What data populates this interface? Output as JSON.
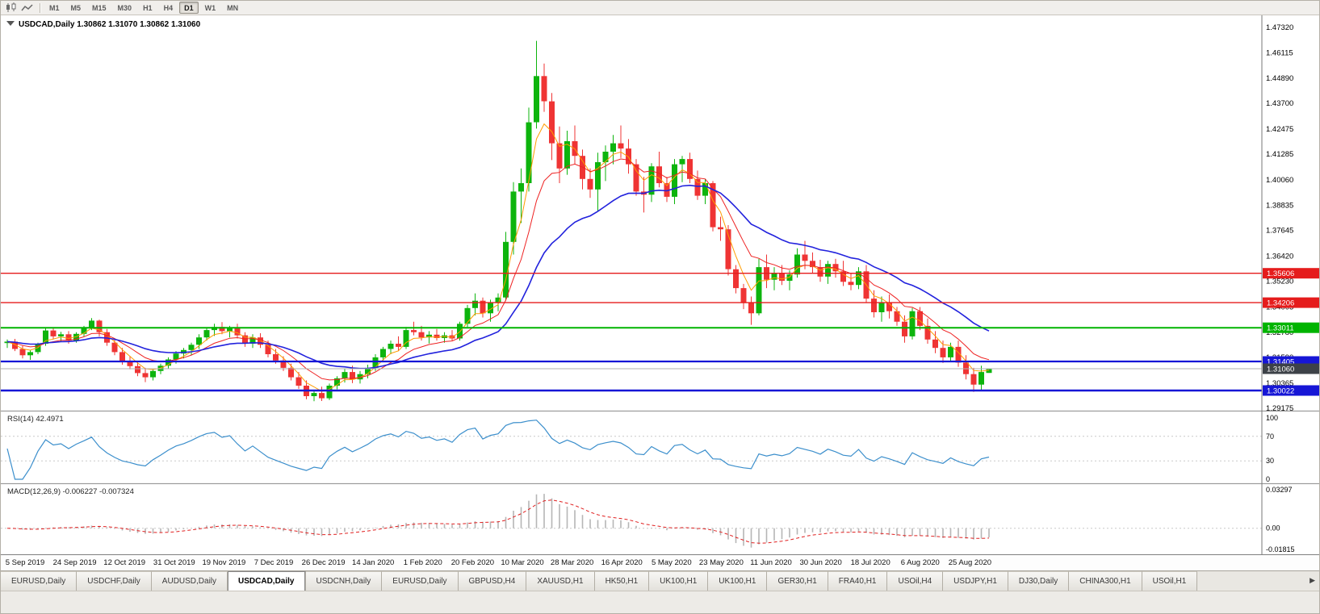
{
  "icons": {
    "tab_scroll_right": "▶"
  },
  "toolbar": {
    "timeframes": [
      "M1",
      "M5",
      "M15",
      "M30",
      "H1",
      "H4",
      "D1",
      "W1",
      "MN"
    ],
    "active_timeframe": "D1"
  },
  "chart_data": {
    "type": "candlestick",
    "header": {
      "symbol": "USDCAD,Daily",
      "open": "1.30862",
      "high": "1.31070",
      "low": "1.30862",
      "close": "1.31060"
    },
    "y_axis_labels": [
      "1.47320",
      "1.46115",
      "1.44890",
      "1.43700",
      "1.42475",
      "1.41285",
      "1.40060",
      "1.38835",
      "1.37645",
      "1.36420",
      "1.35230",
      "1.34005",
      "1.32780",
      "1.31590",
      "1.30365",
      "1.29175"
    ],
    "x_axis_labels": [
      "5 Sep 2019",
      "24 Sep 2019",
      "12 Oct 2019",
      "31 Oct 2019",
      "19 Nov 2019",
      "7 Dec 2019",
      "26 Dec 2019",
      "14 Jan 2020",
      "1 Feb 2020",
      "20 Feb 2020",
      "10 Mar 2020",
      "28 Mar 2020",
      "16 Apr 2020",
      "5 May 2020",
      "23 May 2020",
      "11 Jun 2020",
      "30 Jun 2020",
      "18 Jul 2020",
      "6 Aug 2020",
      "25 Aug 2020"
    ],
    "candle_colors": {
      "up": "#0db40d",
      "down": "#ef3434"
    },
    "ma_lines": [
      {
        "name": "fast",
        "color": "#ff9c00"
      },
      {
        "name": "medium",
        "color": "#ee2222"
      },
      {
        "name": "slow",
        "color": "#2222dd"
      }
    ],
    "hlines": [
      {
        "value": 1.35606,
        "label": "1.35606",
        "color": "#e51c1c",
        "width": 1.4
      },
      {
        "value": 1.34206,
        "label": "1.34206",
        "color": "#e51c1c",
        "width": 1.4
      },
      {
        "value": 1.33011,
        "label": "1.33011",
        "color": "#00b400",
        "width": 2
      },
      {
        "value": 1.31405,
        "label": "1.31405",
        "color": "#1616d6",
        "width": 2.2
      },
      {
        "value": 1.30022,
        "label": "1.30022",
        "color": "#1616d6",
        "width": 2.6
      }
    ],
    "current_price": {
      "value": 1.3106,
      "label": "1.31060",
      "line_color": "#b0b0b0",
      "box_color": "#3d4248"
    },
    "ohlc": [
      [
        1.3228,
        1.3245,
        1.3205,
        1.3235
      ],
      [
        1.3235,
        1.3248,
        1.319,
        1.32
      ],
      [
        1.32,
        1.3215,
        1.3155,
        1.317
      ],
      [
        1.317,
        1.3195,
        1.3148,
        1.3185
      ],
      [
        1.3185,
        1.323,
        1.3175,
        1.3225
      ],
      [
        1.3225,
        1.3298,
        1.3215,
        1.3288
      ],
      [
        1.3288,
        1.33,
        1.3245,
        1.326
      ],
      [
        1.326,
        1.3282,
        1.3235,
        1.327
      ],
      [
        1.327,
        1.3285,
        1.3225,
        1.324
      ],
      [
        1.324,
        1.328,
        1.323,
        1.3272
      ],
      [
        1.3272,
        1.331,
        1.326,
        1.33
      ],
      [
        1.33,
        1.3347,
        1.329,
        1.3335
      ],
      [
        1.3335,
        1.334,
        1.326,
        1.328
      ],
      [
        1.328,
        1.3295,
        1.3215,
        1.323
      ],
      [
        1.323,
        1.325,
        1.317,
        1.3185
      ],
      [
        1.3185,
        1.3205,
        1.3125,
        1.314
      ],
      [
        1.314,
        1.3165,
        1.3103,
        1.3118
      ],
      [
        1.3118,
        1.314,
        1.307,
        1.3085
      ],
      [
        1.3085,
        1.311,
        1.3042,
        1.3065
      ],
      [
        1.3065,
        1.3105,
        1.305,
        1.3095
      ],
      [
        1.3095,
        1.313,
        1.308,
        1.312
      ],
      [
        1.312,
        1.316,
        1.3105,
        1.315
      ],
      [
        1.315,
        1.319,
        1.313,
        1.3178
      ],
      [
        1.3178,
        1.3205,
        1.3155,
        1.3195
      ],
      [
        1.3195,
        1.323,
        1.317,
        1.322
      ],
      [
        1.322,
        1.327,
        1.32,
        1.3255
      ],
      [
        1.3255,
        1.33,
        1.324,
        1.329
      ],
      [
        1.329,
        1.332,
        1.3262,
        1.3305
      ],
      [
        1.3305,
        1.3328,
        1.327,
        1.3285
      ],
      [
        1.3285,
        1.331,
        1.3255,
        1.33
      ],
      [
        1.33,
        1.332,
        1.325,
        1.3265
      ],
      [
        1.3265,
        1.328,
        1.321,
        1.3225
      ],
      [
        1.3225,
        1.327,
        1.3205,
        1.3255
      ],
      [
        1.3255,
        1.3275,
        1.3205,
        1.322
      ],
      [
        1.322,
        1.324,
        1.316,
        1.3175
      ],
      [
        1.3175,
        1.32,
        1.313,
        1.3145
      ],
      [
        1.3145,
        1.3165,
        1.3095,
        1.311
      ],
      [
        1.311,
        1.313,
        1.305,
        1.3065
      ],
      [
        1.3065,
        1.309,
        1.301,
        1.3025
      ],
      [
        1.3025,
        1.305,
        1.296,
        1.2975
      ],
      [
        1.2975,
        1.3005,
        1.2951,
        1.299
      ],
      [
        1.299,
        1.302,
        1.2952,
        1.2965
      ],
      [
        1.2965,
        1.3035,
        1.2957,
        1.3025
      ],
      [
        1.3025,
        1.307,
        1.3008,
        1.306
      ],
      [
        1.306,
        1.3105,
        1.304,
        1.309
      ],
      [
        1.309,
        1.312,
        1.3037,
        1.3055
      ],
      [
        1.3055,
        1.3095,
        1.3035,
        1.308
      ],
      [
        1.308,
        1.3125,
        1.306,
        1.311
      ],
      [
        1.311,
        1.3175,
        1.3095,
        1.316
      ],
      [
        1.316,
        1.321,
        1.314,
        1.32
      ],
      [
        1.32,
        1.324,
        1.3175,
        1.3225
      ],
      [
        1.3225,
        1.326,
        1.319,
        1.321
      ],
      [
        1.321,
        1.3305,
        1.32,
        1.329
      ],
      [
        1.329,
        1.333,
        1.3265,
        1.328
      ],
      [
        1.328,
        1.331,
        1.324,
        1.3255
      ],
      [
        1.3255,
        1.3285,
        1.3226,
        1.3268
      ],
      [
        1.3268,
        1.3295,
        1.324,
        1.3252
      ],
      [
        1.3252,
        1.328,
        1.323,
        1.3265
      ],
      [
        1.3265,
        1.329,
        1.324,
        1.325
      ],
      [
        1.325,
        1.333,
        1.324,
        1.332
      ],
      [
        1.332,
        1.341,
        1.3305,
        1.3395
      ],
      [
        1.3395,
        1.3465,
        1.336,
        1.343
      ],
      [
        1.343,
        1.3445,
        1.335,
        1.337
      ],
      [
        1.337,
        1.3435,
        1.333,
        1.342
      ],
      [
        1.342,
        1.3465,
        1.338,
        1.3445
      ],
      [
        1.3445,
        1.3758,
        1.343,
        1.371
      ],
      [
        1.371,
        1.3995,
        1.365,
        1.395
      ],
      [
        1.395,
        1.406,
        1.38,
        1.399
      ],
      [
        1.399,
        1.435,
        1.395,
        1.428
      ],
      [
        1.428,
        1.4668,
        1.425,
        1.45
      ],
      [
        1.45,
        1.456,
        1.433,
        1.438
      ],
      [
        1.438,
        1.442,
        1.41,
        1.418
      ],
      [
        1.418,
        1.426,
        1.399,
        1.406
      ],
      [
        1.406,
        1.424,
        1.403,
        1.419
      ],
      [
        1.419,
        1.4265,
        1.408,
        1.412
      ],
      [
        1.412,
        1.415,
        1.396,
        1.401
      ],
      [
        1.401,
        1.406,
        1.392,
        1.396
      ],
      [
        1.396,
        1.4135,
        1.3855,
        1.409
      ],
      [
        1.409,
        1.417,
        1.4,
        1.414
      ],
      [
        1.414,
        1.422,
        1.408,
        1.418
      ],
      [
        1.418,
        1.4265,
        1.411,
        1.4155
      ],
      [
        1.4155,
        1.42,
        1.4035,
        1.408
      ],
      [
        1.408,
        1.4105,
        1.393,
        1.395
      ],
      [
        1.395,
        1.402,
        1.385,
        1.3935
      ],
      [
        1.3935,
        1.4085,
        1.39,
        1.407
      ],
      [
        1.407,
        1.414,
        1.397,
        1.399
      ],
      [
        1.399,
        1.402,
        1.39,
        1.3925
      ],
      [
        1.3925,
        1.4105,
        1.389,
        1.408
      ],
      [
        1.408,
        1.412,
        1.3995,
        1.4105
      ],
      [
        1.4105,
        1.4135,
        1.399,
        1.401
      ],
      [
        1.401,
        1.405,
        1.391,
        1.393
      ],
      [
        1.393,
        1.401,
        1.389,
        1.399
      ],
      [
        1.399,
        1.4,
        1.376,
        1.378
      ],
      [
        1.378,
        1.383,
        1.3715,
        1.377
      ],
      [
        1.377,
        1.379,
        1.355,
        1.358
      ],
      [
        1.358,
        1.36,
        1.3465,
        1.349
      ],
      [
        1.349,
        1.351,
        1.339,
        1.342
      ],
      [
        1.342,
        1.345,
        1.3315,
        1.337
      ],
      [
        1.337,
        1.363,
        1.336,
        1.359
      ],
      [
        1.359,
        1.365,
        1.349,
        1.353
      ],
      [
        1.353,
        1.359,
        1.348,
        1.356
      ],
      [
        1.356,
        1.36,
        1.3505,
        1.3525
      ],
      [
        1.3525,
        1.3575,
        1.348,
        1.3555
      ],
      [
        1.3555,
        1.368,
        1.354,
        1.365
      ],
      [
        1.365,
        1.3715,
        1.358,
        1.362
      ],
      [
        1.362,
        1.366,
        1.356,
        1.359
      ],
      [
        1.359,
        1.3625,
        1.352,
        1.3545
      ],
      [
        1.3545,
        1.362,
        1.351,
        1.3605
      ],
      [
        1.3605,
        1.363,
        1.354,
        1.357
      ],
      [
        1.357,
        1.362,
        1.35,
        1.352
      ],
      [
        1.352,
        1.356,
        1.348,
        1.3505
      ],
      [
        1.3505,
        1.359,
        1.3485,
        1.357
      ],
      [
        1.357,
        1.36,
        1.342,
        1.344
      ],
      [
        1.344,
        1.348,
        1.335,
        1.3375
      ],
      [
        1.3375,
        1.345,
        1.333,
        1.342
      ],
      [
        1.342,
        1.346,
        1.3345,
        1.338
      ],
      [
        1.338,
        1.34,
        1.331,
        1.333
      ],
      [
        1.333,
        1.336,
        1.323,
        1.326
      ],
      [
        1.326,
        1.3395,
        1.3245,
        1.338
      ],
      [
        1.338,
        1.34,
        1.329,
        1.331
      ],
      [
        1.331,
        1.3345,
        1.3225,
        1.3245
      ],
      [
        1.3245,
        1.3285,
        1.318,
        1.3205
      ],
      [
        1.3205,
        1.324,
        1.3133,
        1.316
      ],
      [
        1.316,
        1.323,
        1.314,
        1.321
      ],
      [
        1.321,
        1.324,
        1.3115,
        1.3135
      ],
      [
        1.3135,
        1.317,
        1.3055,
        1.308
      ],
      [
        1.308,
        1.311,
        1.2995,
        1.303
      ],
      [
        1.303,
        1.312,
        1.3005,
        1.309
      ],
      [
        1.30862,
        1.3107,
        1.30862,
        1.3106
      ]
    ],
    "indicators": {
      "rsi": {
        "label": "RSI(14)",
        "value": "42.4971",
        "color": "#3c8fcc",
        "levels": [
          {
            "value": 100,
            "label": "100"
          },
          {
            "value": 70,
            "label": "70"
          },
          {
            "value": 30,
            "label": "30"
          },
          {
            "value": 0,
            "label": "0"
          }
        ]
      },
      "macd": {
        "label": "MACD(12,26,9)",
        "value_main": "-0.006227",
        "value_signal": "-0.007324",
        "hist_color": "#b6b6b6",
        "signal_color": "#e02020",
        "axis": [
          {
            "value": 0.03297,
            "label": "0.03297"
          },
          {
            "value": 0,
            "label": "0.00"
          },
          {
            "value": -0.01815,
            "label": "-0.01815"
          }
        ]
      }
    }
  },
  "tabs": {
    "items": [
      "EURUSD,Daily",
      "USDCHF,Daily",
      "AUDUSD,Daily",
      "USDCAD,Daily",
      "USDCNH,Daily",
      "EURUSD,Daily",
      "GBPUSD,H4",
      "XAUUSD,H1",
      "HK50,H1",
      "UK100,H1",
      "UK100,H1",
      "GER30,H1",
      "FRA40,H1",
      "USOil,H4",
      "USDJPY,H1",
      "DJ30,Daily",
      "CHINA300,H1",
      "USOil,H1"
    ],
    "active_index": 3
  }
}
